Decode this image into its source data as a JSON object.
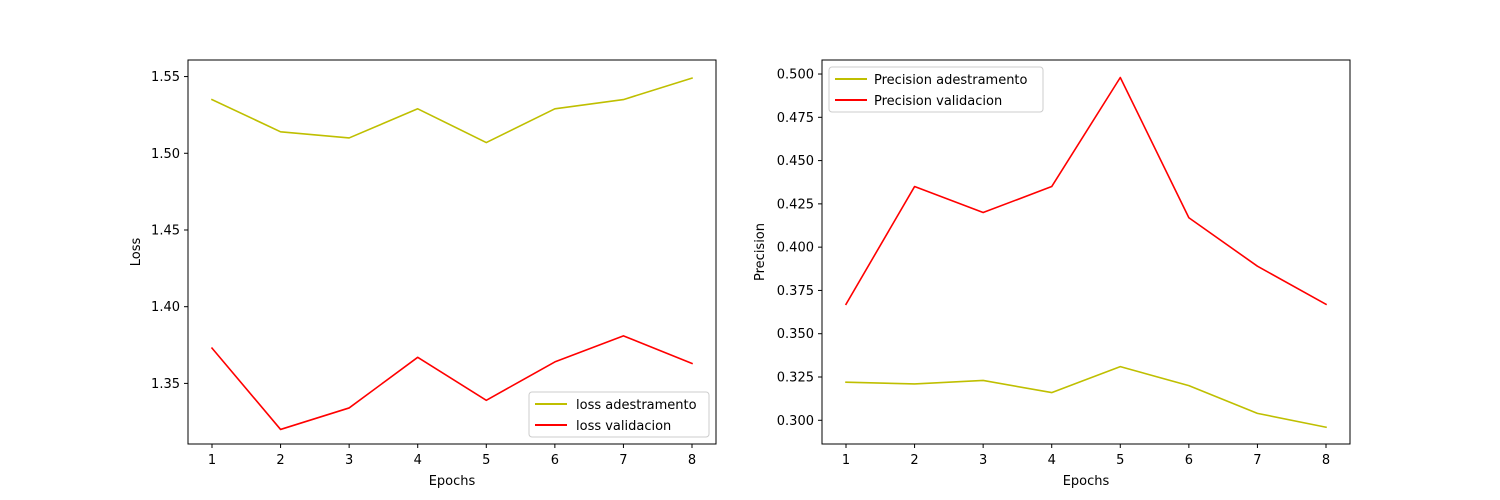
{
  "chart_data": [
    {
      "type": "line",
      "title": "",
      "xlabel": "Epochs",
      "ylabel": "Loss",
      "x": [
        1,
        2,
        3,
        4,
        5,
        6,
        7,
        8
      ],
      "xlim": [
        0.65,
        8.35
      ],
      "ylim": [
        1.3105,
        1.5608
      ],
      "yticks": [
        1.35,
        1.4,
        1.45,
        1.5,
        1.55
      ],
      "ytick_labels": [
        "1.35",
        "1.40",
        "1.45",
        "1.50",
        "1.55"
      ],
      "legend_position": "lower-right",
      "series": [
        {
          "name": "loss adestramento",
          "color": "#bfbf00",
          "values": [
            1.535,
            1.514,
            1.51,
            1.529,
            1.507,
            1.529,
            1.535,
            1.549
          ]
        },
        {
          "name": "loss validacion",
          "color": "#ff0000",
          "values": [
            1.373,
            1.32,
            1.334,
            1.367,
            1.339,
            1.364,
            1.381,
            1.363
          ]
        }
      ]
    },
    {
      "type": "line",
      "title": "",
      "xlabel": "Epochs",
      "ylabel": "Precision",
      "x": [
        1,
        2,
        3,
        4,
        5,
        6,
        7,
        8
      ],
      "xlim": [
        0.65,
        8.35
      ],
      "ylim": [
        0.2863,
        0.5081
      ],
      "yticks": [
        0.3,
        0.325,
        0.35,
        0.375,
        0.4,
        0.425,
        0.45,
        0.475,
        0.5
      ],
      "ytick_labels": [
        "0.300",
        "0.325",
        "0.350",
        "0.375",
        "0.400",
        "0.425",
        "0.450",
        "0.475",
        "0.500"
      ],
      "legend_position": "upper-left",
      "series": [
        {
          "name": "Precision adestramento",
          "color": "#bfbf00",
          "values": [
            0.322,
            0.321,
            0.323,
            0.316,
            0.331,
            0.32,
            0.304,
            0.296
          ]
        },
        {
          "name": "Precision validacion",
          "color": "#ff0000",
          "values": [
            0.367,
            0.435,
            0.42,
            0.435,
            0.498,
            0.417,
            0.389,
            0.367
          ]
        }
      ]
    }
  ]
}
